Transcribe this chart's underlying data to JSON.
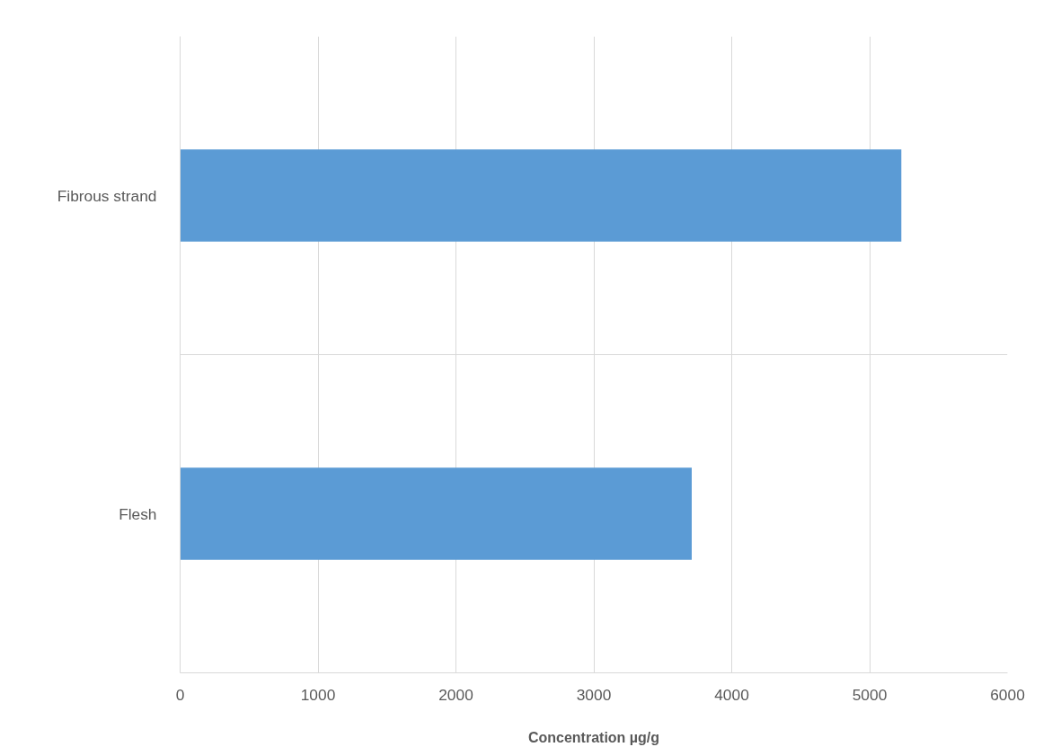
{
  "chart_data": {
    "type": "bar",
    "orientation": "horizontal",
    "xlabel": "Concentration µg/g",
    "categories": [
      "Fibrous strand",
      "Flesh"
    ],
    "values": [
      5230,
      3710
    ],
    "color": "#5b9bd5",
    "xlim": [
      0,
      6000
    ],
    "xticks": [
      0,
      1000,
      2000,
      3000,
      4000,
      5000,
      6000
    ],
    "grid": true
  }
}
